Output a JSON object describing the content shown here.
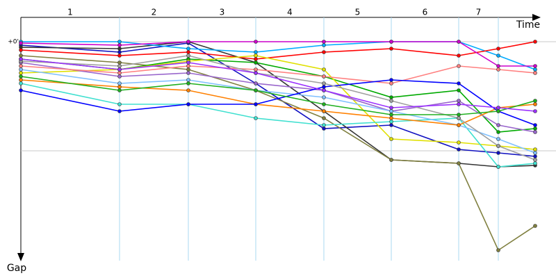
{
  "chart_data": {
    "type": "line",
    "x_label": "Time",
    "y_label": "Gap",
    "laps": [
      "1",
      "2",
      "3",
      "4",
      "5",
      "6",
      "7"
    ],
    "xlim": [
      0,
      770
    ],
    "ylim": [
      0,
      315
    ],
    "xticks": [
      142,
      241,
      338,
      436,
      533,
      630,
      687
    ],
    "yticks": [
      {
        "value": 0,
        "label": "+0'"
      }
    ],
    "grid_y": [
      0,
      157
    ],
    "x": [
      0,
      142,
      241,
      338,
      436,
      533,
      630,
      687,
      740
    ],
    "series": [
      {
        "color": "#1010c0",
        "values": [
          5,
          15,
          2,
          60,
          125,
          120,
          155,
          160,
          165
        ]
      },
      {
        "color": "#333333",
        "values": [
          8,
          10,
          0,
          30,
          100,
          170,
          175,
          180,
          178
        ]
      },
      {
        "color": "#808040",
        "values": [
          20,
          30,
          40,
          70,
          110,
          170,
          175,
          300,
          265
        ]
      },
      {
        "color": "#00aaff",
        "values": [
          0,
          0,
          10,
          15,
          5,
          0,
          0,
          20,
          40
        ]
      },
      {
        "color": "#ff0000",
        "values": [
          12,
          20,
          15,
          25,
          15,
          10,
          20,
          10,
          0
        ]
      },
      {
        "color": "#cc00cc",
        "values": [
          2,
          5,
          0,
          0,
          0,
          0,
          0,
          35,
          35
        ]
      },
      {
        "color": "#00aa00",
        "values": [
          25,
          40,
          25,
          30,
          50,
          80,
          70,
          130,
          125
        ]
      },
      {
        "color": "#e0e000",
        "values": [
          45,
          40,
          28,
          20,
          40,
          140,
          145,
          150,
          155
        ]
      },
      {
        "color": "#40e0d0",
        "values": [
          60,
          90,
          90,
          110,
          120,
          115,
          110,
          180,
          175
        ]
      },
      {
        "color": "#9966cc",
        "values": [
          30,
          50,
          45,
          60,
          70,
          100,
          85,
          120,
          130
        ]
      },
      {
        "color": "#ff8080",
        "values": [
          35,
          45,
          35,
          40,
          50,
          60,
          35,
          40,
          45
        ]
      },
      {
        "color": "#80c0ff",
        "values": [
          40,
          60,
          55,
          70,
          80,
          100,
          120,
          140,
          160
        ]
      },
      {
        "color": "#ff8000",
        "values": [
          55,
          65,
          70,
          90,
          100,
          110,
          120,
          95,
          90
        ]
      },
      {
        "color": "#0000ff",
        "values": [
          70,
          100,
          90,
          90,
          65,
          55,
          60,
          100,
          120
        ]
      },
      {
        "color": "#a0a0a0",
        "values": [
          28,
          35,
          20,
          45,
          60,
          85,
          110,
          150,
          170
        ]
      },
      {
        "color": "#20b020",
        "values": [
          50,
          70,
          60,
          70,
          90,
          105,
          105,
          100,
          85
        ]
      },
      {
        "color": "#9b30ff",
        "values": [
          25,
          40,
          30,
          45,
          70,
          95,
          90,
          95,
          100
        ]
      }
    ]
  }
}
